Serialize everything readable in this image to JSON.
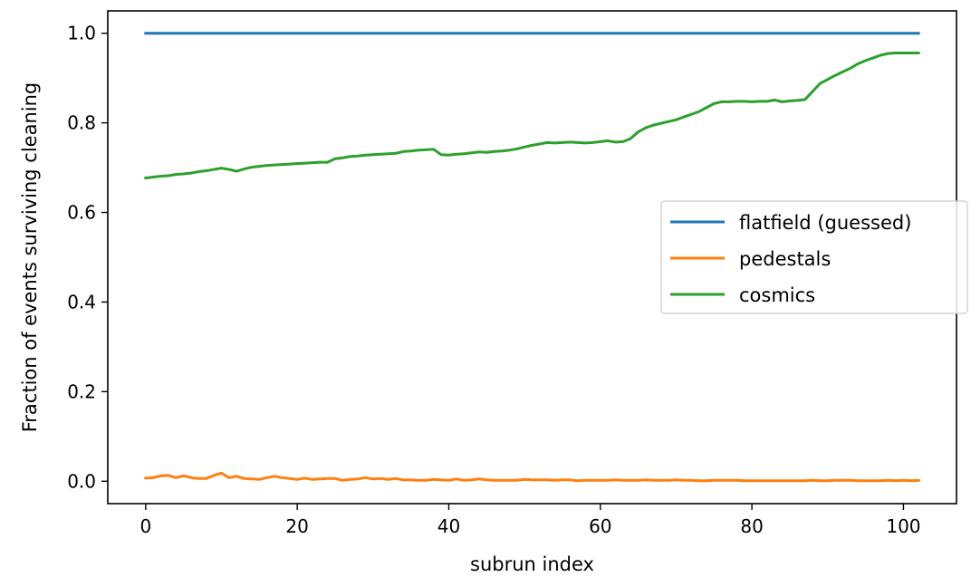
{
  "chart_data": {
    "type": "line",
    "xlabel": "subrun index",
    "ylabel": "Fraction of events surviving cleaning",
    "xlim": [
      -5,
      107
    ],
    "ylim": [
      -0.05,
      1.05
    ],
    "xticks": [
      0,
      20,
      40,
      60,
      80,
      100
    ],
    "yticks": [
      0.0,
      0.2,
      0.4,
      0.6,
      0.8,
      1.0
    ],
    "xtick_labels": [
      "0",
      "20",
      "40",
      "60",
      "80",
      "100"
    ],
    "ytick_labels": [
      "0.0",
      "0.2",
      "0.4",
      "0.6",
      "0.8",
      "1.0"
    ],
    "legend_position": "center-right",
    "x_start": 0,
    "x_end": 102,
    "series": [
      {
        "name": "flatfield (guessed)",
        "color": "#1f77b4",
        "values": [
          1.0,
          1.0
        ]
      },
      {
        "name": "pedestals",
        "color": "#ff7f0e",
        "values": [
          0.007,
          0.008,
          0.012,
          0.013,
          0.008,
          0.012,
          0.008,
          0.006,
          0.006,
          0.013,
          0.018,
          0.008,
          0.011,
          0.006,
          0.005,
          0.004,
          0.008,
          0.011,
          0.008,
          0.006,
          0.004,
          0.007,
          0.004,
          0.005,
          0.006,
          0.006,
          0.002,
          0.004,
          0.005,
          0.008,
          0.005,
          0.006,
          0.004,
          0.006,
          0.003,
          0.003,
          0.002,
          0.002,
          0.004,
          0.003,
          0.002,
          0.005,
          0.002,
          0.003,
          0.005,
          0.003,
          0.002,
          0.002,
          0.002,
          0.002,
          0.004,
          0.003,
          0.003,
          0.003,
          0.002,
          0.003,
          0.003,
          0.001,
          0.002,
          0.002,
          0.002,
          0.002,
          0.003,
          0.002,
          0.002,
          0.002,
          0.003,
          0.002,
          0.002,
          0.002,
          0.003,
          0.002,
          0.002,
          0.001,
          0.001,
          0.002,
          0.002,
          0.002,
          0.002,
          0.001,
          0.001,
          0.001,
          0.001,
          0.001,
          0.001,
          0.001,
          0.001,
          0.001,
          0.002,
          0.001,
          0.001,
          0.002,
          0.002,
          0.002,
          0.001,
          0.001,
          0.001,
          0.001,
          0.002,
          0.001,
          0.002,
          0.001,
          0.002
        ]
      },
      {
        "name": "cosmics",
        "color": "#2ca02c",
        "values": [
          0.677,
          0.679,
          0.681,
          0.682,
          0.685,
          0.686,
          0.688,
          0.691,
          0.693,
          0.696,
          0.699,
          0.696,
          0.692,
          0.697,
          0.701,
          0.703,
          0.705,
          0.706,
          0.707,
          0.708,
          0.709,
          0.71,
          0.711,
          0.712,
          0.712,
          0.72,
          0.722,
          0.725,
          0.726,
          0.728,
          0.729,
          0.73,
          0.731,
          0.732,
          0.736,
          0.737,
          0.739,
          0.74,
          0.741,
          0.729,
          0.728,
          0.73,
          0.731,
          0.733,
          0.735,
          0.734,
          0.736,
          0.737,
          0.739,
          0.742,
          0.746,
          0.75,
          0.753,
          0.756,
          0.755,
          0.756,
          0.757,
          0.756,
          0.755,
          0.756,
          0.758,
          0.76,
          0.757,
          0.758,
          0.765,
          0.78,
          0.789,
          0.795,
          0.799,
          0.803,
          0.807,
          0.813,
          0.819,
          0.825,
          0.834,
          0.843,
          0.847,
          0.847,
          0.848,
          0.848,
          0.847,
          0.848,
          0.848,
          0.851,
          0.847,
          0.849,
          0.85,
          0.852,
          0.87,
          0.888,
          0.897,
          0.906,
          0.914,
          0.922,
          0.932,
          0.939,
          0.945,
          0.951,
          0.955,
          0.956,
          0.956,
          0.956,
          0.956
        ]
      }
    ]
  }
}
